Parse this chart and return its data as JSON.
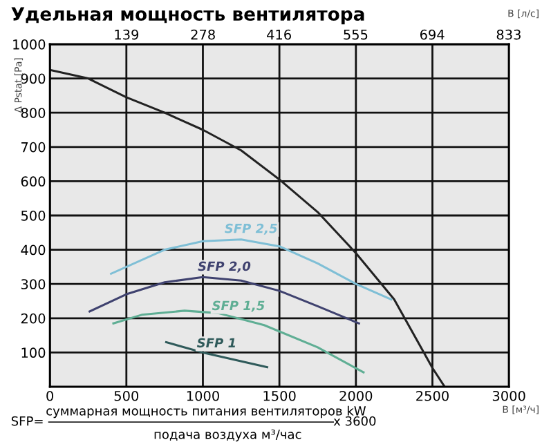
{
  "chart_data": {
    "type": "line",
    "title": "Удельная мощность вентилятора",
    "xlabel": "В [м³/ч]",
    "x2label": "В [л/с]",
    "ylabel": "Δ Pstat [Pa]",
    "xlim": [
      0,
      3000
    ],
    "xticks": [
      0,
      500,
      1000,
      1500,
      2000,
      2500,
      3000
    ],
    "x2lim": [
      0,
      833.33
    ],
    "x2ticks": [
      139,
      278,
      416,
      555,
      694,
      833
    ],
    "ylim": [
      0,
      1000
    ],
    "yticks": [
      100,
      200,
      300,
      400,
      500,
      600,
      700,
      800,
      900,
      1000
    ],
    "grid": true,
    "line_style": "solid",
    "series": [
      {
        "color": "#222222",
        "x": [
          0,
          250,
          500,
          750,
          1000,
          1250,
          1500,
          1750,
          2000,
          2250,
          2500,
          2580
        ],
        "values": [
          925,
          900,
          845,
          800,
          750,
          690,
          605,
          510,
          390,
          255,
          55,
          0
        ]
      },
      {
        "name": "SFP 2,5",
        "color": "#7fbfd6",
        "x": [
          400,
          750,
          1000,
          1250,
          1500,
          1750,
          2000,
          2230
        ],
        "values": [
          330,
          400,
          425,
          430,
          410,
          360,
          300,
          255
        ]
      },
      {
        "name": "SFP 2,0",
        "color": "#3f426f",
        "x": [
          260,
          500,
          750,
          1000,
          1250,
          1500,
          1750,
          2020
        ],
        "values": [
          220,
          270,
          305,
          320,
          310,
          280,
          235,
          185
        ]
      },
      {
        "name": "SFP 1,5",
        "color": "#5fae94",
        "x": [
          415,
          600,
          880,
          1100,
          1400,
          1750,
          2050
        ],
        "values": [
          185,
          210,
          222,
          215,
          180,
          115,
          42
        ]
      },
      {
        "name": "SFP 1",
        "color": "#2f5a5a",
        "x": [
          760,
          1000,
          1420
        ],
        "values": [
          130,
          100,
          57
        ]
      }
    ],
    "annotations": [
      "SFP=",
      "суммарная мощность питания вентиляторов kW",
      "подача воздуха м³/час",
      "x 3600"
    ]
  }
}
